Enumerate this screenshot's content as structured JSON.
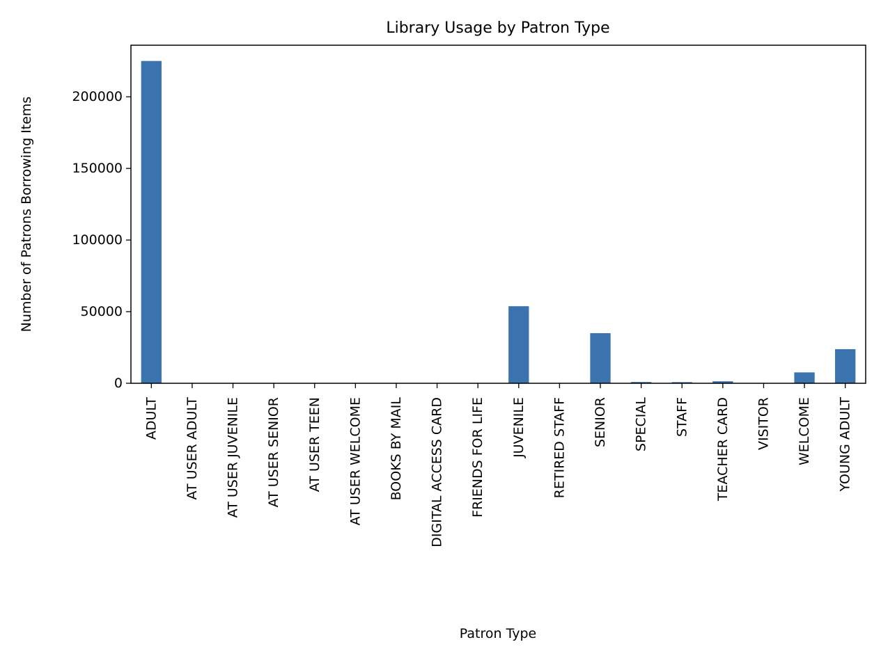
{
  "chart_data": {
    "type": "bar",
    "title": "Library Usage by Patron Type",
    "xlabel": "Patron Type",
    "ylabel": "Number of Patrons Borrowing Items",
    "categories": [
      "ADULT",
      "AT USER ADULT",
      "AT USER JUVENILE",
      "AT USER SENIOR",
      "AT USER TEEN",
      "AT USER WELCOME",
      "BOOKS BY MAIL",
      "DIGITAL ACCESS CARD",
      "FRIENDS FOR LIFE",
      "JUVENILE",
      "RETIRED STAFF",
      "SENIOR",
      "SPECIAL",
      "STAFF",
      "TEACHER CARD",
      "VISITOR",
      "WELCOME",
      "YOUNG ADULT"
    ],
    "values": [
      225000,
      80,
      60,
      70,
      40,
      30,
      90,
      10,
      120,
      53800,
      150,
      35000,
      900,
      800,
      1400,
      50,
      7600,
      23800
    ],
    "ylim": [
      0,
      236000
    ],
    "yticks": [
      0,
      50000,
      100000,
      150000,
      200000
    ],
    "ytick_labels": [
      "0",
      "50000",
      "100000",
      "150000",
      "200000"
    ],
    "colors": {
      "bar": "#3a73ae",
      "axis": "#000000"
    },
    "grid": false,
    "legend": "none"
  }
}
